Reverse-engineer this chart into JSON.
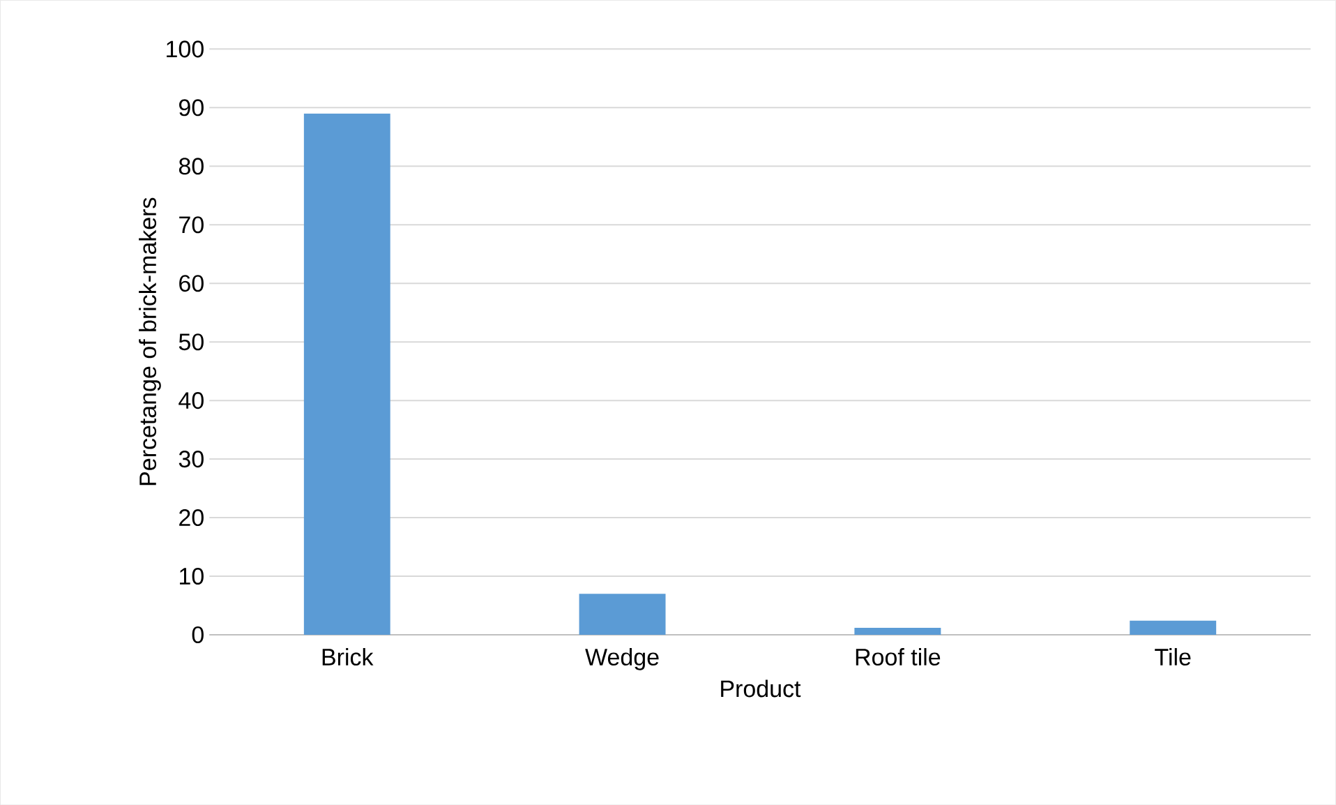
{
  "chart_data": {
    "type": "bar",
    "xlabel": "Product",
    "ylabel": "Percetange of brick-makers",
    "categories": [
      "Brick",
      "Wedge",
      "Roof tile",
      "Tile"
    ],
    "values": [
      89,
      7,
      1.2,
      2.4
    ],
    "color": "#5b9bd5",
    "ylim": [
      0,
      100
    ],
    "yticks": [
      0,
      10,
      20,
      30,
      40,
      50,
      60,
      70,
      80,
      90,
      100
    ],
    "grid": "y"
  }
}
